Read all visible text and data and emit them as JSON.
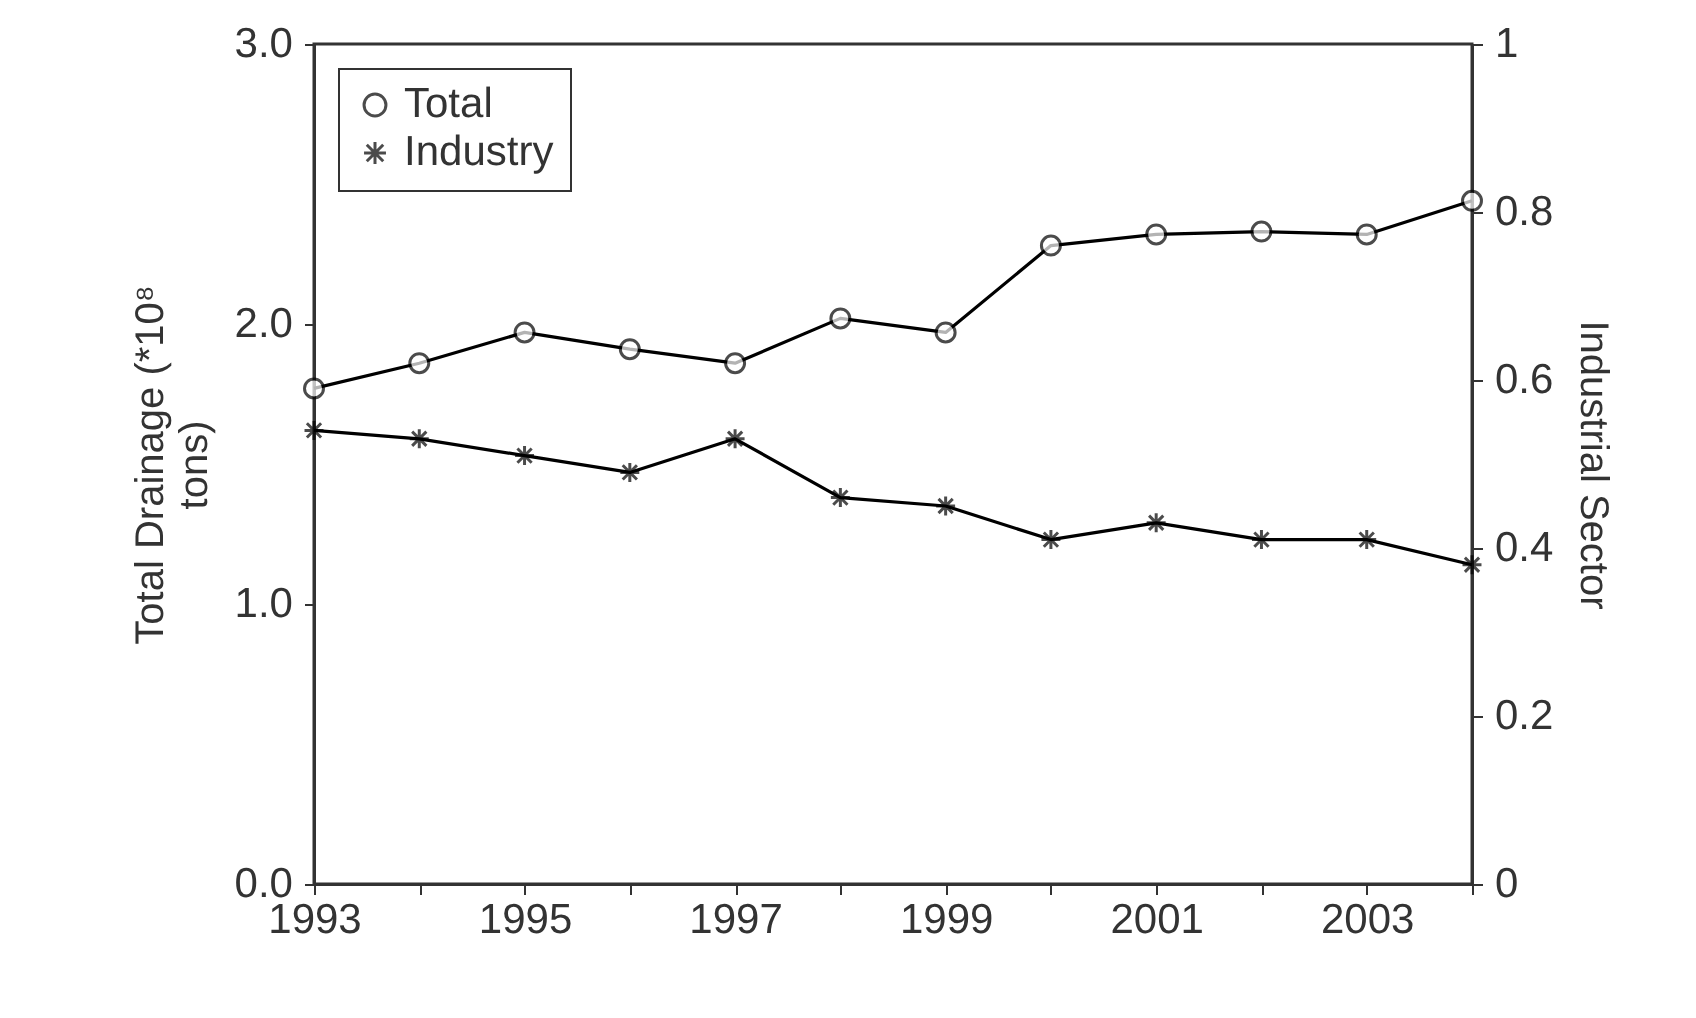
{
  "chart_data": {
    "type": "line",
    "x": [
      1993,
      1994,
      1995,
      1996,
      1997,
      1998,
      1999,
      2000,
      2001,
      2002,
      2003,
      2004
    ],
    "xlim": [
      1993,
      2004
    ],
    "xticks": [
      1993,
      {
        "value": 1994,
        "label": null
      },
      1995,
      {
        "value": 1996,
        "label": null
      },
      1997,
      {
        "value": 1998,
        "label": null
      },
      1999,
      {
        "value": 2000,
        "label": null
      },
      2001,
      {
        "value": 2002,
        "label": null
      },
      2003,
      {
        "value": 2004,
        "label": null
      }
    ],
    "ylabel": "Total Drainage (*10⁸ tons)",
    "y2label": "Industrial Sector",
    "ylim": [
      0,
      3
    ],
    "yticks": [
      {
        "value": 0,
        "label": "0.0"
      },
      {
        "value": 1,
        "label": "1.0"
      },
      {
        "value": 2,
        "label": "2.0"
      },
      {
        "value": 3,
        "label": "3.0"
      }
    ],
    "y2lim": [
      0,
      1
    ],
    "y2ticks": [
      0,
      0.2,
      0.4,
      0.6,
      0.8,
      1
    ],
    "grid": false,
    "legend": "top left",
    "line_style": "solid",
    "series": [
      {
        "name": "Total",
        "color": "#000000",
        "marker": "circle",
        "values": [
          1.77,
          1.86,
          1.97,
          1.91,
          1.86,
          2.02,
          1.97,
          2.28,
          2.32,
          2.33,
          2.32,
          2.44
        ]
      },
      {
        "name": "Industry",
        "color": "#000000",
        "marker": "cross",
        "axis": "y2",
        "values": [
          0.54,
          0.53,
          0.51,
          0.49,
          0.53,
          0.46,
          0.45,
          0.41,
          0.43,
          0.41,
          0.41,
          0.38
        ]
      }
    ]
  }
}
